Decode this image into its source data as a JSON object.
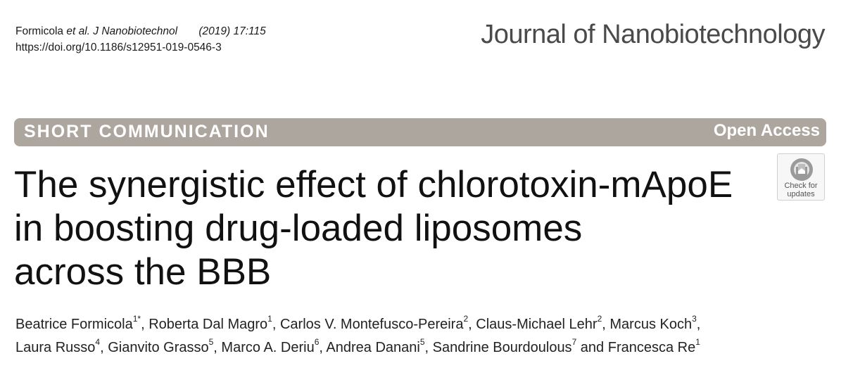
{
  "citation": {
    "authors": "Formicola",
    "etal": "et al. J Nanobiotechnol",
    "year_vol": "(2019) 17:115",
    "doi": "https://doi.org/10.1186/s12951-019-0546-3"
  },
  "journal_name": "Journal of Nanobiotechnology",
  "banner": {
    "article_type": "SHORT COMMUNICATION",
    "access": "Open Access",
    "color": "#ada69f"
  },
  "title_lines": [
    "The synergistic effect of chlorotoxin-mApoE",
    "in boosting drug-loaded liposomes",
    "across the BBB"
  ],
  "badge": {
    "icon": "check-for-updates-icon",
    "line1": "Check for",
    "line2": "updates"
  },
  "authors": [
    {
      "name": "Beatrice Formicola",
      "sup": "1*",
      "sep": ", "
    },
    {
      "name": "Roberta Dal Magro",
      "sup": "1",
      "sep": ", "
    },
    {
      "name": "Carlos V. Montefusco-Pereira",
      "sup": "2",
      "sep": ", "
    },
    {
      "name": "Claus-Michael Lehr",
      "sup": "2",
      "sep": ", "
    },
    {
      "name": "Marcus Koch",
      "sup": "3",
      "sep": ","
    },
    {
      "name": "Laura Russo",
      "sup": "4",
      "sep": ", "
    },
    {
      "name": "Gianvito Grasso",
      "sup": "5",
      "sep": ", "
    },
    {
      "name": "Marco A. Deriu",
      "sup": "6",
      "sep": ", "
    },
    {
      "name": "Andrea Danani",
      "sup": "5",
      "sep": ", "
    },
    {
      "name": "Sandrine Bourdoulous",
      "sup": "7",
      "sep": " and "
    },
    {
      "name": "Francesca Re",
      "sup": "1",
      "sep": ""
    }
  ]
}
